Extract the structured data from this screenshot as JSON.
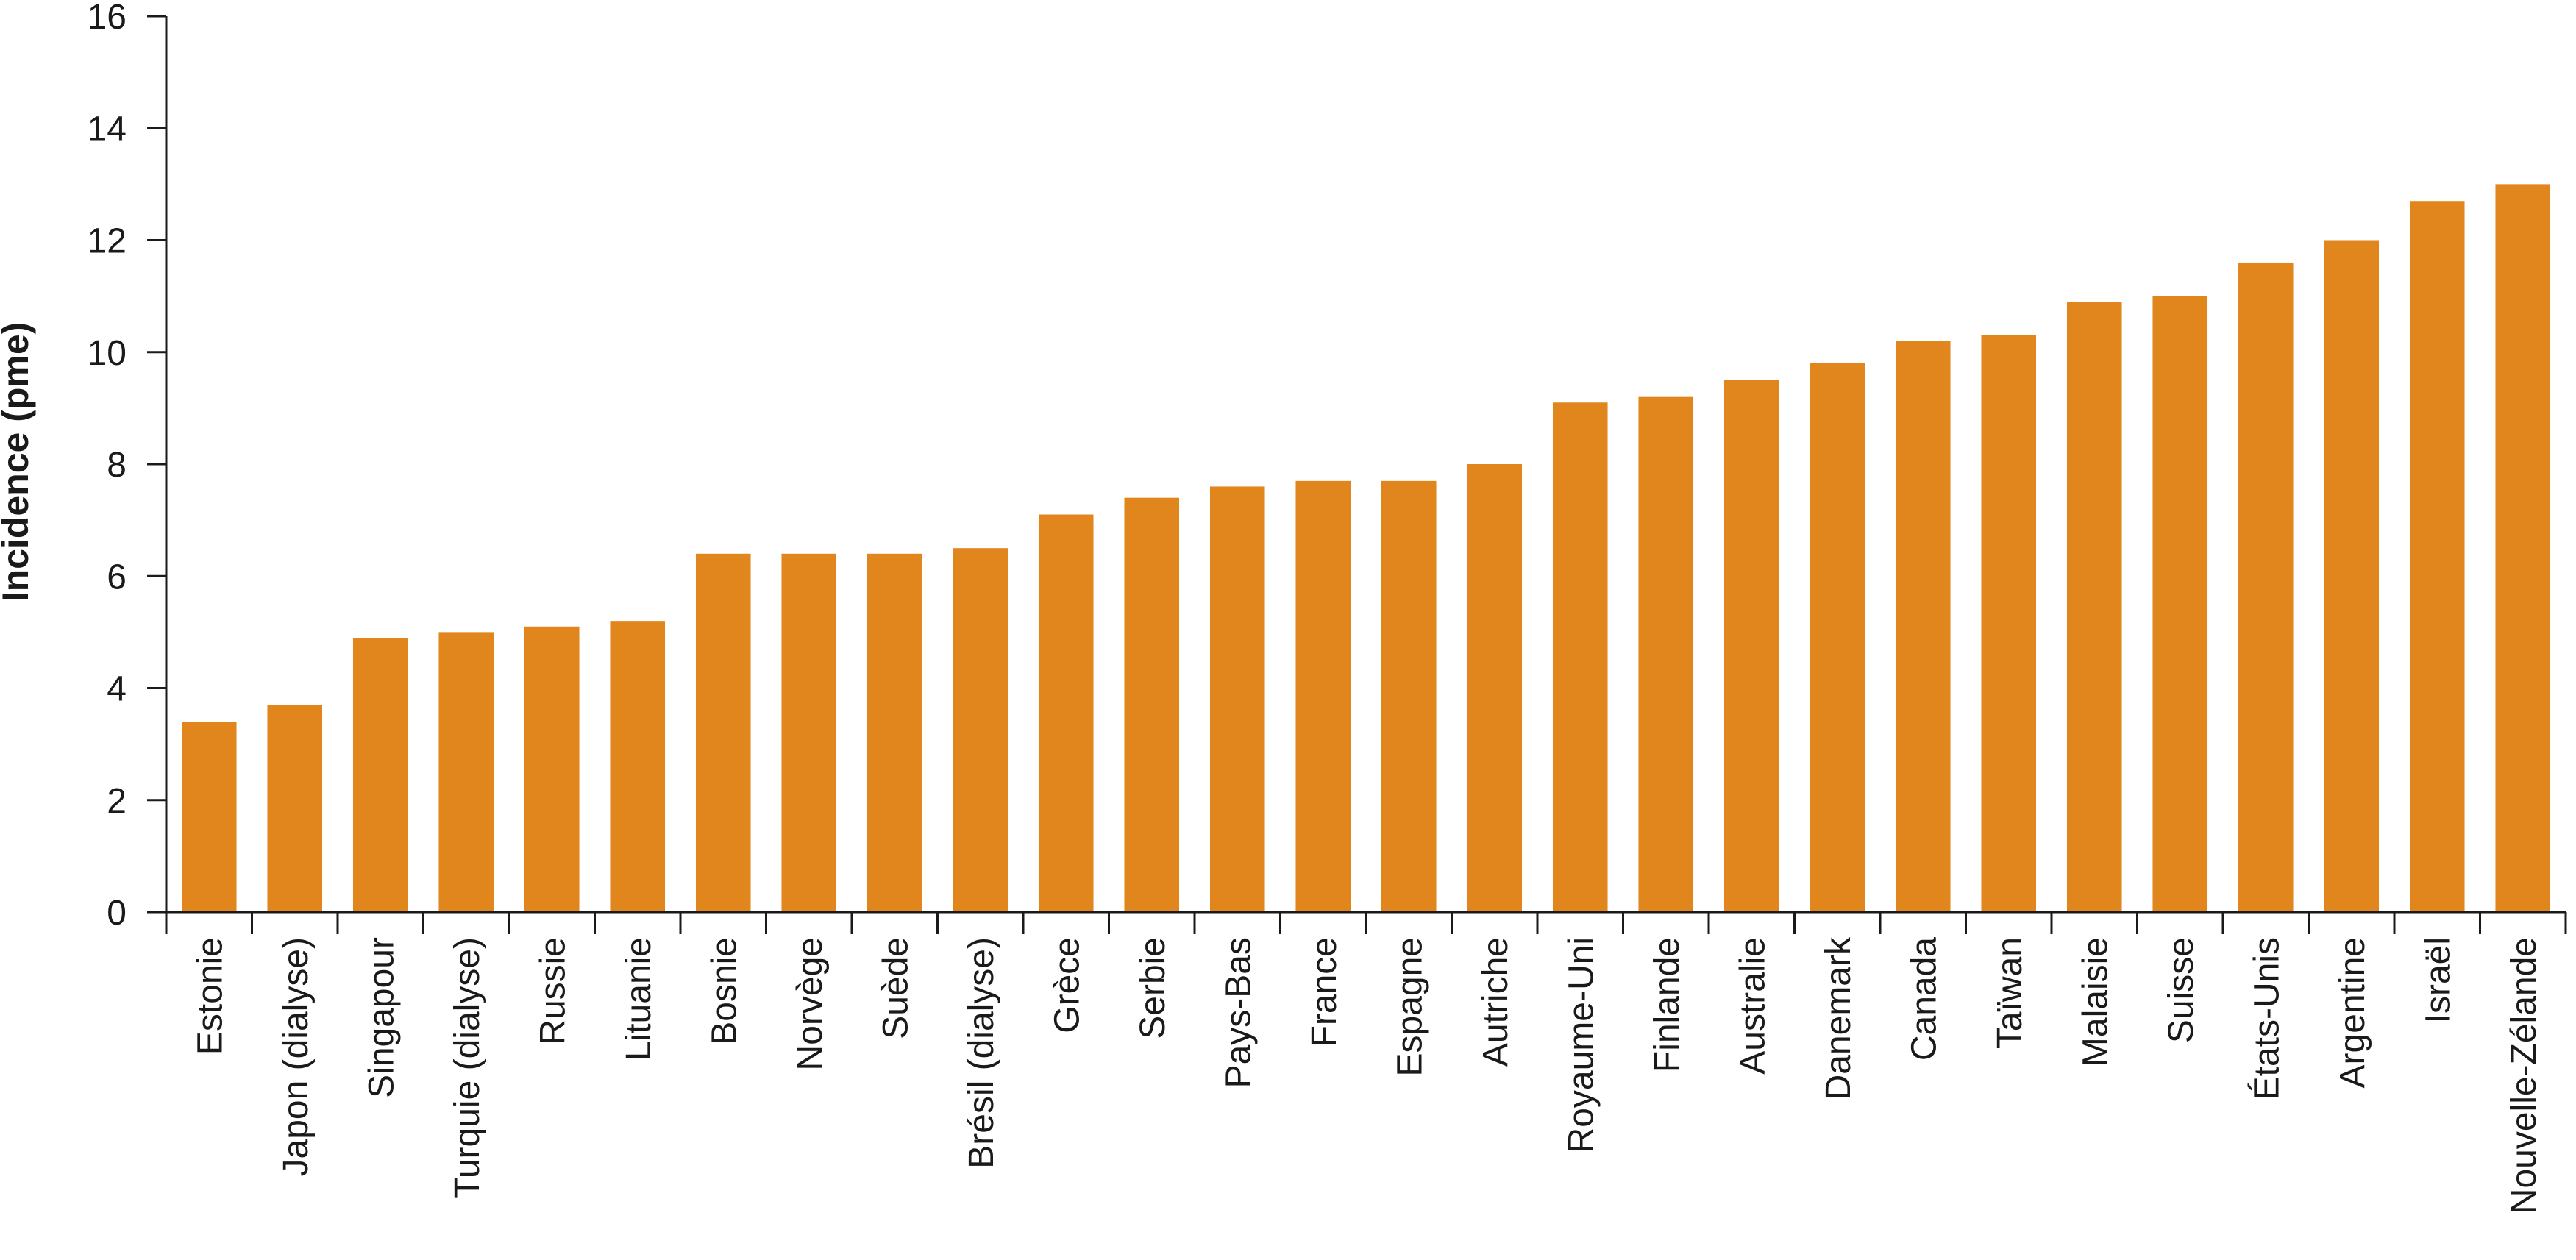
{
  "chart_data": {
    "type": "bar",
    "title": "",
    "xlabel": "",
    "ylabel": "Incidence (pme)",
    "ylim": [
      0,
      16
    ],
    "yticks": [
      0,
      2,
      4,
      6,
      8,
      10,
      12,
      14,
      16
    ],
    "grid": false,
    "bar_color": "#E0861C",
    "categories": [
      "Estonie",
      "Japon (dialyse)",
      "Singapour",
      "Turquie (dialyse)",
      "Russie",
      "Lituanie",
      "Bosnie",
      "Norvège",
      "Suède",
      "Brésil (dialyse)",
      "Grèce",
      "Serbie",
      "Pays-Bas",
      "France",
      "Espagne",
      "Autriche",
      "Royaume-Uni",
      "Finlande",
      "Australie",
      "Danemark",
      "Canada",
      "Taïwan",
      "Malaisie",
      "Suisse",
      "États-Unis",
      "Argentine",
      "Israël",
      "Nouvelle-Zélande"
    ],
    "values": [
      3.4,
      3.7,
      4.9,
      5.0,
      5.1,
      5.2,
      6.4,
      6.4,
      6.4,
      6.5,
      7.1,
      7.4,
      7.6,
      7.7,
      7.7,
      8.0,
      9.1,
      9.2,
      9.5,
      9.8,
      10.2,
      10.3,
      10.9,
      11.0,
      11.6,
      12.0,
      12.7,
      13.0
    ]
  }
}
